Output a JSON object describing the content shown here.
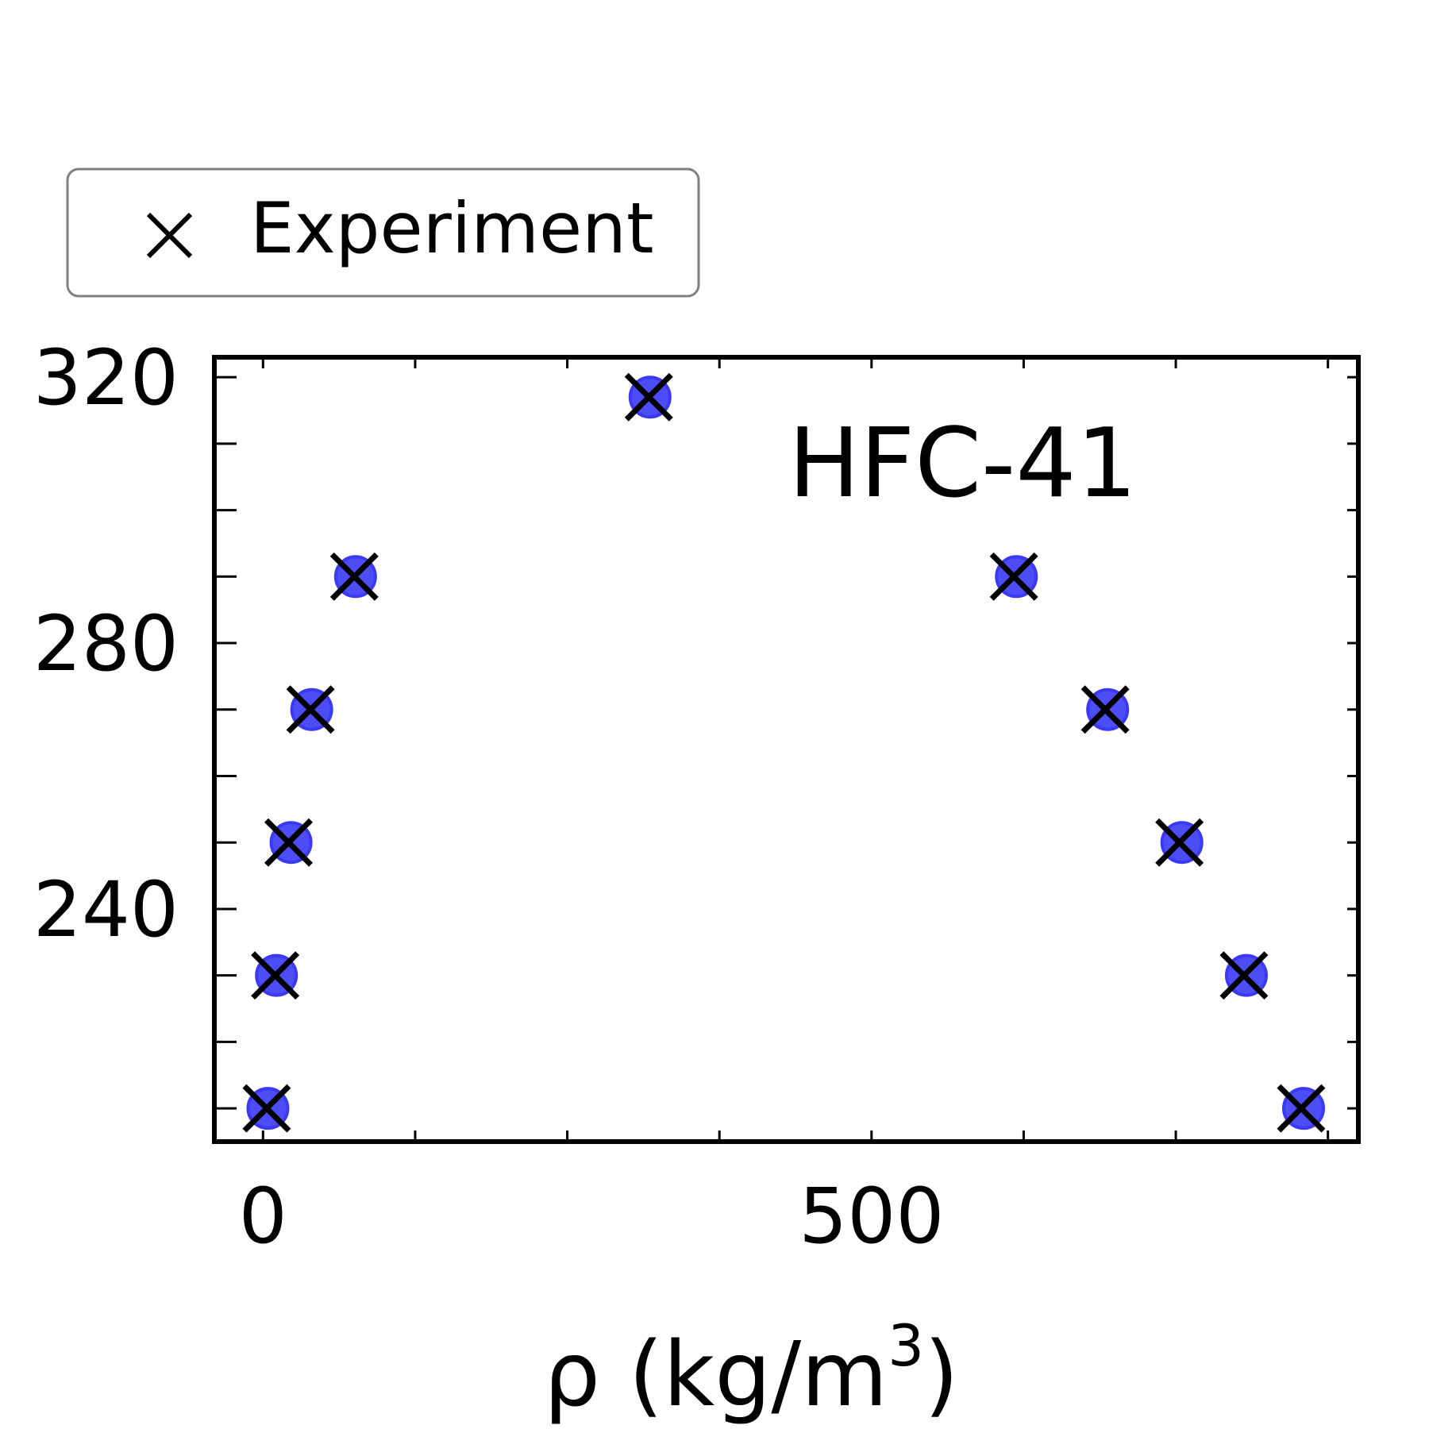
{
  "chart_data": {
    "type": "scatter",
    "title": "",
    "annotation": "HFC-41",
    "xlabel": "ρ (kg/m",
    "xlabel_superscript": "3",
    "xlabel_suffix": ")",
    "ylabel": "",
    "xlim": [
      -40,
      900
    ],
    "ylim": [
      205,
      323
    ],
    "xticks": [
      0,
      500
    ],
    "xticks_minor": [
      0,
      125,
      250,
      375,
      500,
      625,
      750,
      875
    ],
    "yticks": [
      240,
      280,
      320
    ],
    "yticks_minor": [
      210,
      220,
      230,
      240,
      250,
      260,
      270,
      280,
      290,
      300,
      310,
      320
    ],
    "grid": false,
    "legend": {
      "position": "top-left, outside plot",
      "entries": [
        "Experiment"
      ]
    },
    "colors": {
      "simulation": "#3a3af5",
      "experiment": "#000000"
    },
    "series": [
      {
        "name": "Experiment",
        "marker": "x",
        "points": [
          [
            3,
            210
          ],
          [
            10,
            230
          ],
          [
            21,
            250
          ],
          [
            39,
            270
          ],
          [
            75,
            290
          ],
          [
            317,
            317
          ],
          [
            617,
            290
          ],
          [
            692,
            270
          ],
          [
            753,
            250
          ],
          [
            806,
            230
          ],
          [
            853,
            210
          ]
        ]
      },
      {
        "marker": "circle",
        "points": [
          [
            4,
            210
          ],
          [
            11,
            230
          ],
          [
            23,
            250
          ],
          [
            40,
            270
          ],
          [
            76,
            290
          ],
          [
            318,
            317
          ],
          [
            619,
            290
          ],
          [
            694,
            270
          ],
          [
            755,
            250
          ],
          [
            808,
            230
          ],
          [
            855,
            210
          ]
        ]
      }
    ]
  }
}
